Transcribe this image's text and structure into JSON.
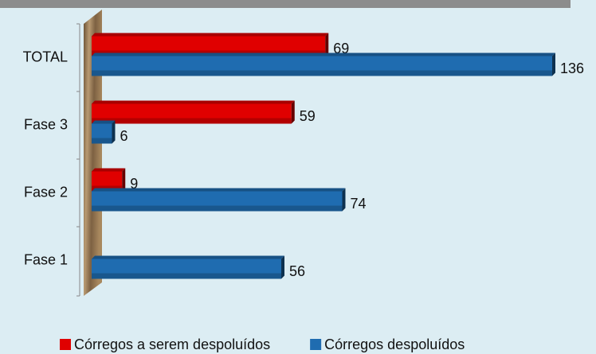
{
  "chart_data": {
    "type": "bar",
    "orientation": "horizontal",
    "categories": [
      "TOTAL",
      "Fase 3",
      "Fase 2",
      "Fase 1"
    ],
    "series": [
      {
        "name": "Córregos a serem despoluídos",
        "color": "#e00000",
        "values": [
          69,
          59,
          9,
          null
        ]
      },
      {
        "name": "Córregos despoluídos",
        "color": "#1f6cb0",
        "values": [
          136,
          6,
          74,
          56
        ]
      }
    ]
  }
}
